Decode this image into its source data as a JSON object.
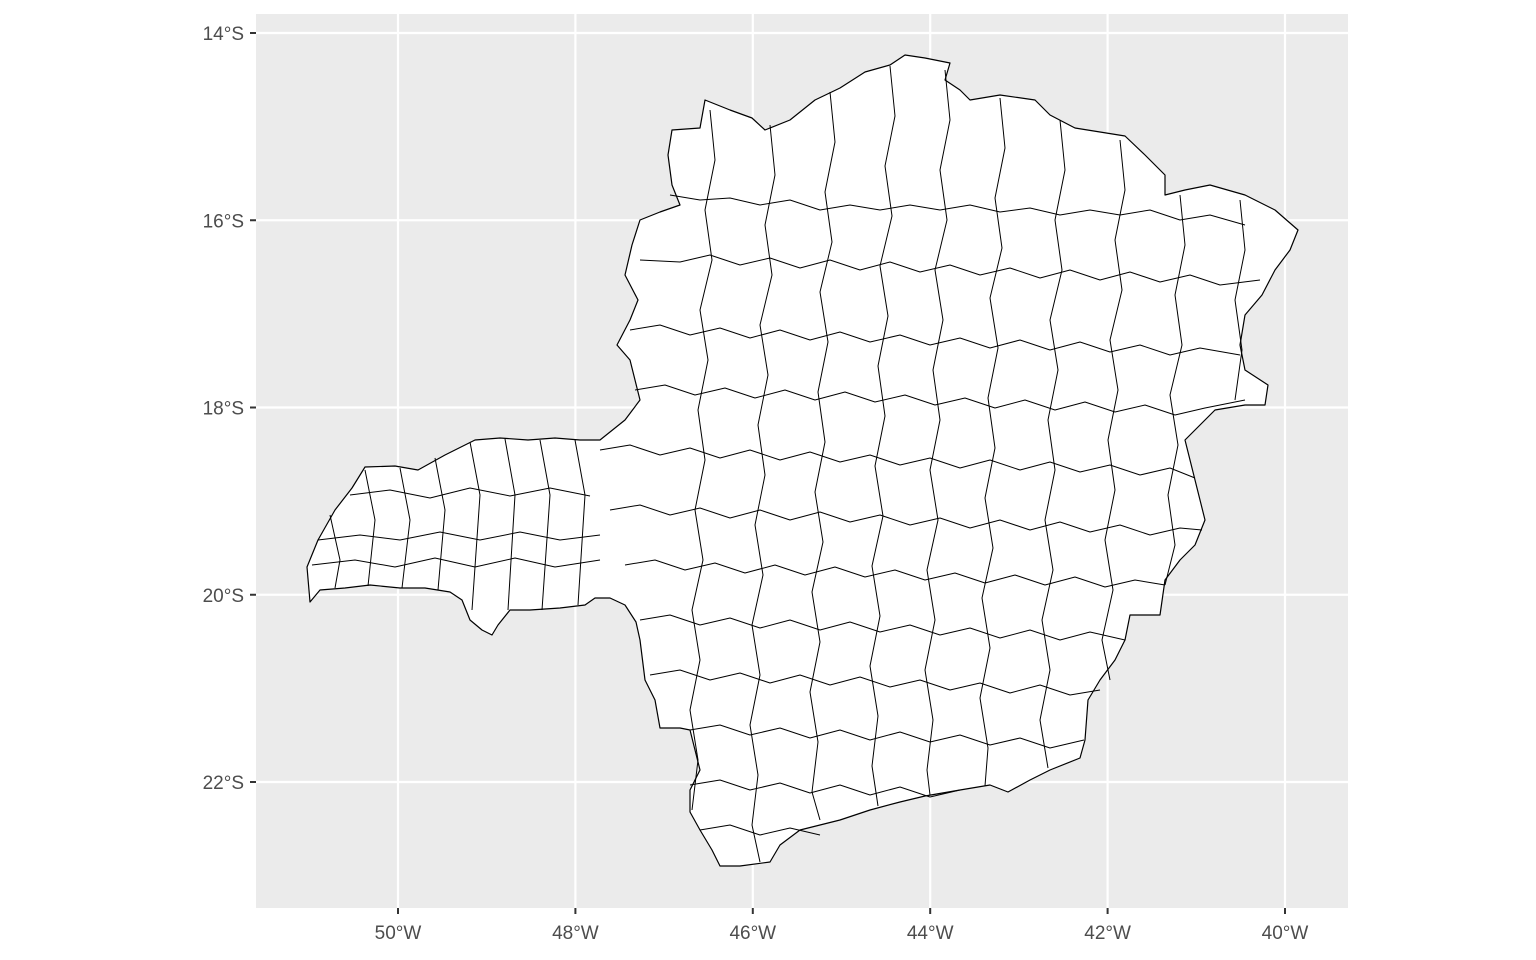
{
  "chart_data": {
    "type": "map",
    "region_fill": "#ffffff",
    "region_stroke": "#000000",
    "panel_background": "#ebebeb",
    "grid_color": "#ffffff",
    "grid": true,
    "x_axis": {
      "ticks": [
        {
          "value": -50,
          "label": "50°W"
        },
        {
          "value": -48,
          "label": "48°W"
        },
        {
          "value": -46,
          "label": "46°W"
        },
        {
          "value": -44,
          "label": "44°W"
        },
        {
          "value": -42,
          "label": "42°W"
        },
        {
          "value": -40,
          "label": "40°W"
        }
      ]
    },
    "y_axis": {
      "ticks": [
        {
          "value": -14,
          "label": "14°S"
        },
        {
          "value": -16,
          "label": "16°S"
        },
        {
          "value": -18,
          "label": "18°S"
        },
        {
          "value": -20,
          "label": "20°S"
        },
        {
          "value": -22,
          "label": "22°S"
        }
      ]
    },
    "xlim": [
      -51.6,
      -39.3
    ],
    "ylim": [
      -23.3,
      -13.8
    ],
    "title": "",
    "xlabel": "",
    "ylabel": ""
  }
}
